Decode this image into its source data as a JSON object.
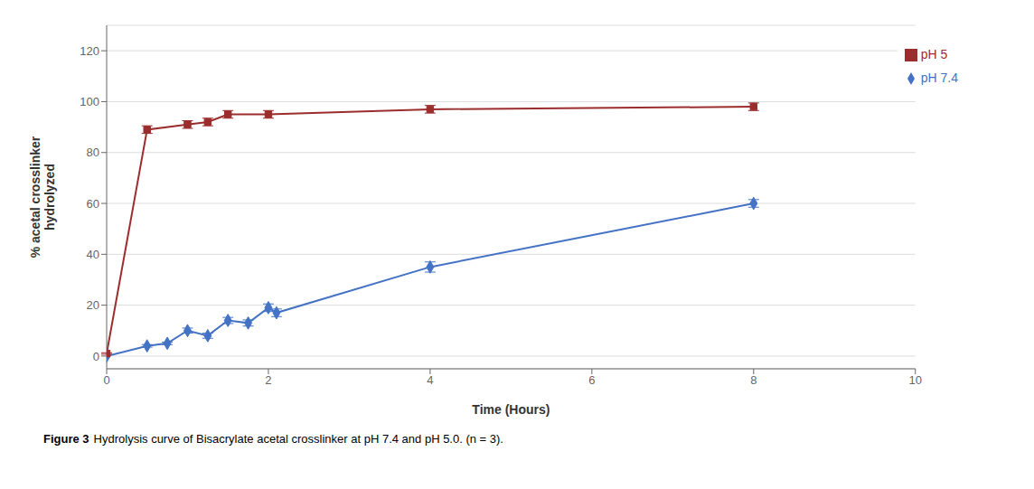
{
  "chart_data": {
    "type": "line",
    "xlabel": "Time (Hours)",
    "ylabel": "% acetal crosslinker\nhydrolyzed",
    "caption_label": "Figure 3",
    "caption": "Hydrolysis curve of Bisacrylate acetal crosslinker at pH 7.4 and pH 5.0. (n = 3).",
    "xlim": [
      0,
      10
    ],
    "ylim": [
      -5,
      130
    ],
    "xticks": [
      0,
      2,
      4,
      6,
      8,
      10
    ],
    "yticks": [
      0,
      20,
      40,
      60,
      80,
      100,
      120
    ],
    "grid": "y",
    "legend": "upper right",
    "series": [
      {
        "name": "pH 7.4",
        "color": "#4472C4",
        "marker": "diamond",
        "x": [
          0,
          0.5,
          0.75,
          1.0,
          1.25,
          1.5,
          1.75,
          2.0,
          2.1,
          4.0,
          8.0
        ],
        "values": [
          0,
          4,
          5,
          10,
          8,
          14,
          13,
          19,
          17,
          35,
          60
        ],
        "errors": [
          0,
          0.5,
          0.5,
          1.0,
          1.0,
          1.2,
          1.2,
          1.5,
          1.5,
          2.0,
          1.5
        ]
      },
      {
        "name": "pH 5",
        "color": "#9B2D2D",
        "marker": "square",
        "x": [
          0,
          0.5,
          1.0,
          1.25,
          1.5,
          2.0,
          4.0,
          8.0
        ],
        "values": [
          1,
          89,
          91,
          92,
          95,
          95,
          97,
          98
        ],
        "errors": [
          0.3,
          1.5,
          1.5,
          1.5,
          1.5,
          1.5,
          1.5,
          1.5
        ]
      }
    ]
  }
}
